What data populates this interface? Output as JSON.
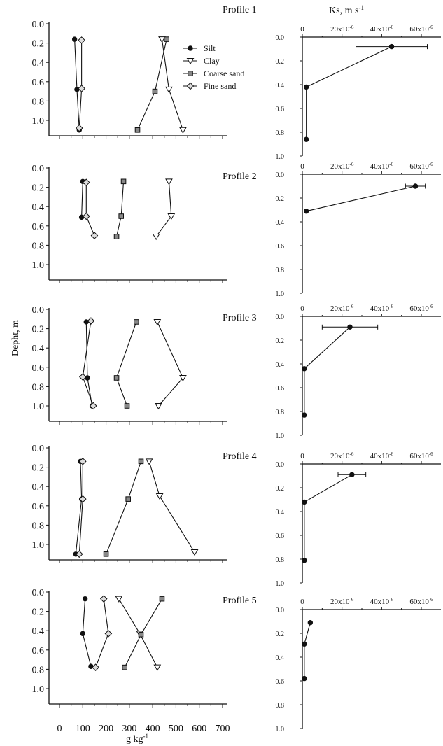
{
  "figure": {
    "ylabel": "Depht, m",
    "xlabel": "g kg",
    "xlabel_sup": "-1",
    "ks_title": "Ks, m s",
    "ks_title_sup": "-1",
    "legend": [
      "Silt",
      "Clay",
      "Coarse sand",
      "Fine sand"
    ],
    "depth_ticks": [
      "0.0",
      "0.2",
      "0.4",
      "0.6",
      "0.8",
      "1.0"
    ],
    "gkg_ticks": [
      "0",
      "100",
      "200",
      "300",
      "400",
      "500",
      "600",
      "700"
    ],
    "ks_ticks": [
      "0",
      "20x10",
      "40x10",
      "60x10"
    ],
    "ks_tick_sup": "-6",
    "ks_depth_ticks": [
      "0.0",
      "0.2",
      "0.4",
      "0.6",
      "0.8",
      "1.0"
    ],
    "colors": {
      "silt": "#111111",
      "clay": "#ffffff",
      "coarse_sand": "#888888",
      "fine_sand": "#dddddd"
    }
  },
  "chart_data": [
    {
      "type": "line",
      "title": "Profile 1",
      "xlabel": "g kg-1",
      "ylabel": "Depht, m",
      "xlim": [
        0,
        700
      ],
      "ylim": [
        1.15,
        0
      ],
      "grid": false,
      "legend_position": "top-right",
      "series": [
        {
          "name": "Silt",
          "x": [
            65,
            75,
            85
          ],
          "y": [
            0.16,
            0.68,
            1.1
          ]
        },
        {
          "name": "Clay",
          "x": [
            440,
            470,
            530
          ],
          "y": [
            0.16,
            0.68,
            1.1
          ]
        },
        {
          "name": "Coarse sand",
          "x": [
            460,
            410,
            335
          ],
          "y": [
            0.16,
            0.7,
            1.1
          ]
        },
        {
          "name": "Fine sand",
          "x": [
            95,
            95,
            85
          ],
          "y": [
            0.17,
            0.67,
            1.08
          ]
        }
      ]
    },
    {
      "type": "scatter",
      "title": "Ks, m s-1",
      "xlabel": "Ks, m s-1",
      "ylabel": "Depht, m",
      "xlim": [
        0,
        6.8e-05
      ],
      "ylim": [
        1,
        0
      ],
      "series": [
        {
          "name": "",
          "x": [
            4.5e-05,
            2e-06,
            2e-06
          ],
          "y": [
            0.08,
            0.42,
            0.86
          ],
          "xerr": [
            1.8e-05,
            0,
            0
          ]
        }
      ]
    },
    {
      "type": "line",
      "title": "Profile 2",
      "xlabel": "g kg-1",
      "ylabel": "Depht, m",
      "xlim": [
        0,
        700
      ],
      "ylim": [
        1.15,
        0
      ],
      "grid": false,
      "series": [
        {
          "name": "Silt",
          "x": [
            100,
            95
          ],
          "y": [
            0.14,
            0.51
          ]
        },
        {
          "name": "Clay",
          "x": [
            470,
            480,
            415
          ],
          "y": [
            0.14,
            0.5,
            0.71
          ]
        },
        {
          "name": "Coarse sand",
          "x": [
            275,
            265,
            245
          ],
          "y": [
            0.14,
            0.5,
            0.71
          ]
        },
        {
          "name": "Fine sand",
          "x": [
            115,
            115,
            150
          ],
          "y": [
            0.15,
            0.5,
            0.7
          ]
        }
      ]
    },
    {
      "type": "scatter",
      "title": "",
      "xlabel": "Ks, m s-1",
      "ylabel": "Depht, m",
      "xlim": [
        0,
        6.8e-05
      ],
      "ylim": [
        1,
        0
      ],
      "series": [
        {
          "name": "",
          "x": [
            5.7e-05,
            2e-06
          ],
          "y": [
            0.1,
            0.31
          ],
          "xerr": [
            5e-06,
            0
          ]
        }
      ]
    },
    {
      "type": "line",
      "title": "Profile 3",
      "xlabel": "g kg-1",
      "ylabel": "Depht, m",
      "xlim": [
        0,
        700
      ],
      "ylim": [
        1.15,
        0
      ],
      "grid": false,
      "series": [
        {
          "name": "Silt",
          "x": [
            115,
            120,
            140
          ],
          "y": [
            0.13,
            0.71,
            1.0
          ]
        },
        {
          "name": "Clay",
          "x": [
            420,
            530,
            425
          ],
          "y": [
            0.13,
            0.71,
            1.0
          ]
        },
        {
          "name": "Coarse sand",
          "x": [
            330,
            245,
            290
          ],
          "y": [
            0.13,
            0.71,
            1.0
          ]
        },
        {
          "name": "Fine sand",
          "x": [
            135,
            100,
            145
          ],
          "y": [
            0.12,
            0.7,
            1.0
          ]
        }
      ]
    },
    {
      "type": "scatter",
      "title": "",
      "xlabel": "Ks, m s-1",
      "ylabel": "Depht, m",
      "xlim": [
        0,
        6.8e-05
      ],
      "ylim": [
        1,
        0
      ],
      "series": [
        {
          "name": "",
          "x": [
            2.4e-05,
            1e-06,
            1e-06
          ],
          "y": [
            0.09,
            0.44,
            0.83
          ],
          "xerr": [
            1.4e-05,
            0,
            0
          ]
        }
      ]
    },
    {
      "type": "line",
      "title": "Profile 4",
      "xlabel": "g kg-1",
      "ylabel": "Depht, m",
      "xlim": [
        0,
        700
      ],
      "ylim": [
        1.15,
        0
      ],
      "grid": false,
      "series": [
        {
          "name": "Silt",
          "x": [
            90,
            95,
            70
          ],
          "y": [
            0.14,
            0.53,
            1.1
          ]
        },
        {
          "name": "Clay",
          "x": [
            385,
            430,
            580
          ],
          "y": [
            0.14,
            0.5,
            1.08
          ]
        },
        {
          "name": "Coarse sand",
          "x": [
            350,
            295,
            200
          ],
          "y": [
            0.14,
            0.53,
            1.1
          ]
        },
        {
          "name": "Fine sand",
          "x": [
            100,
            100,
            85
          ],
          "y": [
            0.14,
            0.53,
            1.1
          ]
        }
      ]
    },
    {
      "type": "scatter",
      "title": "",
      "xlabel": "Ks, m s-1",
      "ylabel": "Depht, m",
      "xlim": [
        0,
        6.8e-05
      ],
      "ylim": [
        1,
        0
      ],
      "series": [
        {
          "name": "",
          "x": [
            2.5e-05,
            1e-06,
            1e-06
          ],
          "y": [
            0.09,
            0.32,
            0.81
          ],
          "xerr": [
            7e-06,
            0,
            0
          ]
        }
      ]
    },
    {
      "type": "line",
      "title": "Profile 5",
      "xlabel": "g kg-1",
      "ylabel": "Depht, m",
      "xlim": [
        0,
        700
      ],
      "ylim": [
        1.15,
        0
      ],
      "grid": false,
      "series": [
        {
          "name": "Silt",
          "x": [
            110,
            100,
            135
          ],
          "y": [
            0.07,
            0.43,
            0.77
          ]
        },
        {
          "name": "Clay",
          "x": [
            255,
            345,
            420
          ],
          "y": [
            0.07,
            0.43,
            0.78
          ]
        },
        {
          "name": "Coarse sand",
          "x": [
            440,
            350,
            280
          ],
          "y": [
            0.07,
            0.44,
            0.78
          ]
        },
        {
          "name": "Fine sand",
          "x": [
            190,
            210,
            155
          ],
          "y": [
            0.07,
            0.43,
            0.78
          ]
        }
      ]
    },
    {
      "type": "scatter",
      "title": "",
      "xlabel": "Ks, m s-1",
      "ylabel": "Depht, m",
      "xlim": [
        0,
        6.8e-05
      ],
      "ylim": [
        1,
        0
      ],
      "series": [
        {
          "name": "",
          "x": [
            4e-06,
            1e-06,
            1e-06
          ],
          "y": [
            0.11,
            0.29,
            0.58
          ],
          "xerr": [
            0,
            0,
            0
          ]
        }
      ]
    }
  ]
}
